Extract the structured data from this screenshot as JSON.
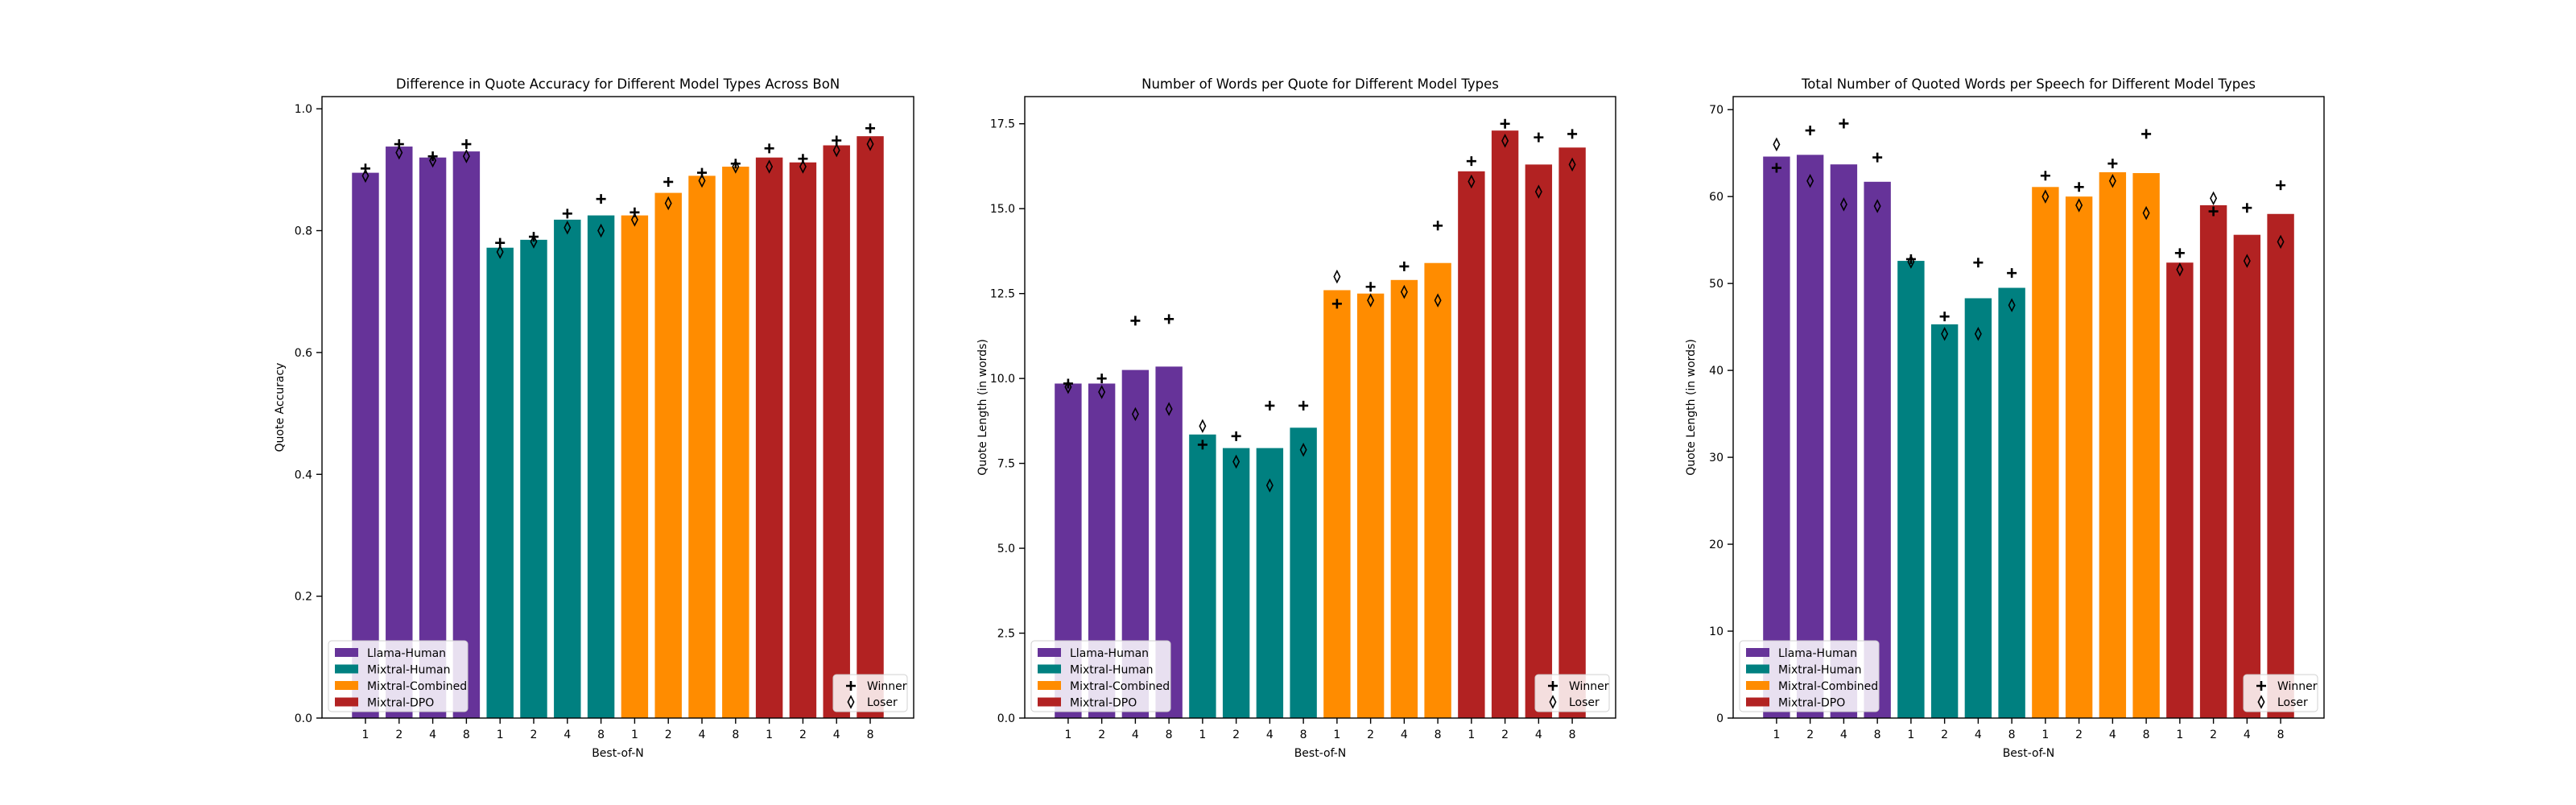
{
  "figure": {
    "background": "#ffffff",
    "group_colors": [
      "#663399",
      "#008080",
      "#ff8c00",
      "#b22222"
    ],
    "legend_groups": [
      "Llama-Human",
      "Mixtral-Human",
      "Mixtral-Combined",
      "Mixtral-DPO"
    ],
    "legend_markers": [
      {
        "label": "Winner",
        "marker": "plus"
      },
      {
        "label": "Loser",
        "marker": "thin-diamond"
      }
    ]
  },
  "chart_data": [
    {
      "type": "bar",
      "title": "Difference in Quote Accuracy for Different Model Types Across BoN",
      "xlabel": "Best-of-N",
      "ylabel": "Quote Accuracy",
      "ylim": [
        0,
        1.02
      ],
      "yticks": [
        0.0,
        0.2,
        0.4,
        0.6,
        0.8,
        1.0
      ],
      "ytick_labels": [
        "0.0",
        "0.2",
        "0.4",
        "0.6",
        "0.8",
        "1.0"
      ],
      "categories": [
        "1",
        "2",
        "4",
        "8",
        "1",
        "2",
        "4",
        "8",
        "1",
        "2",
        "4",
        "8",
        "1",
        "2",
        "4",
        "8"
      ],
      "groups": [
        "Llama-Human",
        "Llama-Human",
        "Llama-Human",
        "Llama-Human",
        "Mixtral-Human",
        "Mixtral-Human",
        "Mixtral-Human",
        "Mixtral-Human",
        "Mixtral-Combined",
        "Mixtral-Combined",
        "Mixtral-Combined",
        "Mixtral-Combined",
        "Mixtral-DPO",
        "Mixtral-DPO",
        "Mixtral-DPO",
        "Mixtral-DPO"
      ],
      "values": [
        0.895,
        0.938,
        0.92,
        0.93,
        0.772,
        0.785,
        0.818,
        0.825,
        0.825,
        0.862,
        0.89,
        0.905,
        0.92,
        0.912,
        0.94,
        0.955
      ],
      "winner": [
        0.902,
        0.942,
        0.922,
        0.942,
        0.78,
        0.79,
        0.828,
        0.852,
        0.83,
        0.88,
        0.895,
        0.91,
        0.935,
        0.918,
        0.948,
        0.968
      ],
      "loser": [
        0.89,
        0.928,
        0.915,
        0.922,
        0.765,
        0.782,
        0.805,
        0.8,
        0.818,
        0.845,
        0.882,
        0.905,
        0.905,
        0.905,
        0.932,
        0.942
      ],
      "legend_placement": "lower-left",
      "marker_legend_placement": "lower-right",
      "grid": false
    },
    {
      "type": "bar",
      "title": "Number of Words per Quote for Different Model Types",
      "xlabel": "Best-of-N",
      "ylabel": "Quote Length (in words)",
      "ylim": [
        0,
        18.3
      ],
      "yticks": [
        0,
        2.5,
        5.0,
        7.5,
        10.0,
        12.5,
        15.0,
        17.5
      ],
      "ytick_labels": [
        "0.0",
        "2.5",
        "5.0",
        "7.5",
        "10.0",
        "12.5",
        "15.0",
        "17.5"
      ],
      "categories": [
        "1",
        "2",
        "4",
        "8",
        "1",
        "2",
        "4",
        "8",
        "1",
        "2",
        "4",
        "8",
        "1",
        "2",
        "4",
        "8"
      ],
      "groups": [
        "Llama-Human",
        "Llama-Human",
        "Llama-Human",
        "Llama-Human",
        "Mixtral-Human",
        "Mixtral-Human",
        "Mixtral-Human",
        "Mixtral-Human",
        "Mixtral-Combined",
        "Mixtral-Combined",
        "Mixtral-Combined",
        "Mixtral-Combined",
        "Mixtral-DPO",
        "Mixtral-DPO",
        "Mixtral-DPO",
        "Mixtral-DPO"
      ],
      "values": [
        9.85,
        9.85,
        10.25,
        10.35,
        8.35,
        7.95,
        7.95,
        8.55,
        12.6,
        12.5,
        12.9,
        13.4,
        16.1,
        17.3,
        16.3,
        16.8
      ],
      "winner": [
        9.85,
        10.0,
        11.7,
        11.75,
        8.05,
        8.3,
        9.2,
        9.2,
        12.2,
        12.7,
        13.3,
        14.5,
        16.4,
        17.5,
        17.1,
        17.2
      ],
      "loser": [
        9.75,
        9.6,
        8.95,
        9.1,
        8.6,
        7.55,
        6.85,
        7.9,
        13.0,
        12.3,
        12.55,
        12.3,
        15.8,
        17.0,
        15.5,
        16.3
      ],
      "legend_placement": "lower-left",
      "marker_legend_placement": "lower-right",
      "grid": false
    },
    {
      "type": "bar",
      "title": "Total Number of Quoted Words per Speech for Different Model Types",
      "xlabel": "Best-of-N",
      "ylabel": "Quote Length (in words)",
      "ylim": [
        0,
        71.5
      ],
      "yticks": [
        0,
        10,
        20,
        30,
        40,
        50,
        60,
        70
      ],
      "ytick_labels": [
        "0",
        "10",
        "20",
        "30",
        "40",
        "50",
        "60",
        "70"
      ],
      "categories": [
        "1",
        "2",
        "4",
        "8",
        "1",
        "2",
        "4",
        "8",
        "1",
        "2",
        "4",
        "8",
        "1",
        "2",
        "4",
        "8"
      ],
      "groups": [
        "Llama-Human",
        "Llama-Human",
        "Llama-Human",
        "Llama-Human",
        "Mixtral-Human",
        "Mixtral-Human",
        "Mixtral-Human",
        "Mixtral-Human",
        "Mixtral-Combined",
        "Mixtral-Combined",
        "Mixtral-Combined",
        "Mixtral-Combined",
        "Mixtral-DPO",
        "Mixtral-DPO",
        "Mixtral-DPO",
        "Mixtral-DPO"
      ],
      "values": [
        64.6,
        64.8,
        63.7,
        61.7,
        52.6,
        45.3,
        48.3,
        49.5,
        61.1,
        60.0,
        62.8,
        62.7,
        52.4,
        59.0,
        55.6,
        58.0
      ],
      "winner": [
        63.3,
        67.6,
        68.4,
        64.5,
        52.8,
        46.2,
        52.4,
        51.2,
        62.4,
        61.1,
        63.8,
        67.2,
        53.5,
        58.3,
        58.7,
        61.3
      ],
      "loser": [
        66.0,
        61.8,
        59.1,
        58.9,
        52.5,
        44.2,
        44.2,
        47.5,
        60.0,
        59.0,
        61.8,
        58.1,
        51.6,
        59.8,
        52.6,
        54.8
      ],
      "legend_placement": "lower-left",
      "marker_legend_placement": "lower-right",
      "grid": false
    }
  ]
}
